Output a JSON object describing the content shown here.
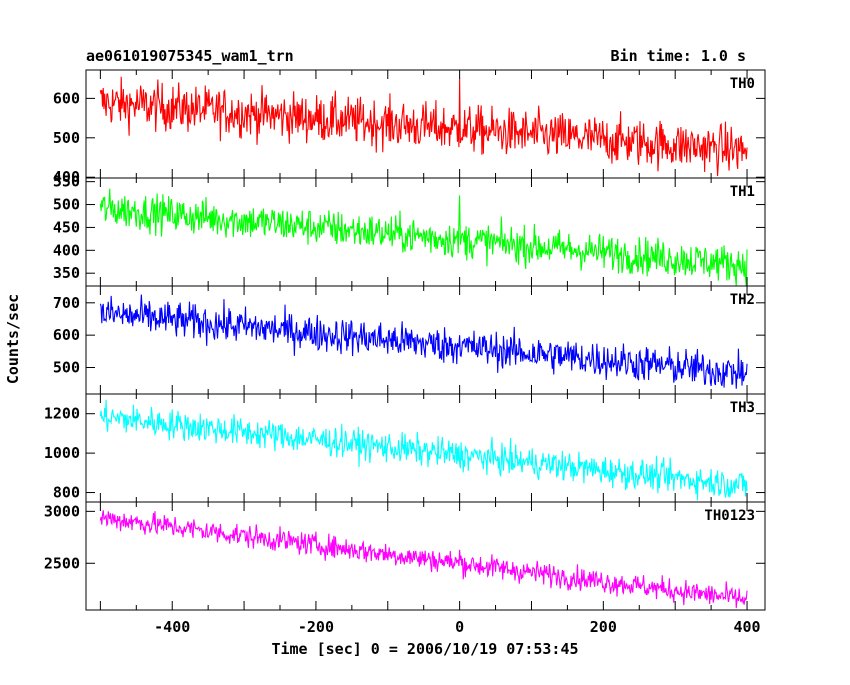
{
  "chart_data": {
    "type": "line",
    "title": "ae061019075345_wam1_trn",
    "subtitle": "Bin time: 1.0 s",
    "xlabel": "Time [sec] 0 = 2006/10/19 07:53:45",
    "ylabel": "Counts/sec",
    "xlim": [
      -520,
      425
    ],
    "x_ticks": [
      -400,
      -200,
      0,
      200,
      400
    ],
    "x": {
      "start": -500,
      "end": 400,
      "step": 1
    },
    "series": [
      {
        "name": "TH0",
        "color": "#ff0000",
        "ylim": [
          398,
          672
        ],
        "y_ticks": [
          400,
          500,
          600
        ],
        "trend_start": 590,
        "trend_end": 468,
        "noise": 30,
        "spike": {
          "x": 0,
          "y": 650
        }
      },
      {
        "name": "TH1",
        "color": "#00ff00",
        "ylim": [
          322,
          558
        ],
        "y_ticks": [
          350,
          400,
          450,
          500,
          550
        ],
        "trend_start": 492,
        "trend_end": 368,
        "noise": 20,
        "spike": {
          "x": 0,
          "y": 520
        }
      },
      {
        "name": "TH2",
        "color": "#0000ff",
        "ylim": [
          418,
          752
        ],
        "y_ticks": [
          500,
          600,
          700
        ],
        "trend_start": 668,
        "trend_end": 482,
        "noise": 28,
        "spike": {
          "x": 0,
          "y": 600
        }
      },
      {
        "name": "TH3",
        "color": "#00ffff",
        "ylim": [
          752,
          1300
        ],
        "y_ticks": [
          800,
          1000,
          1200
        ],
        "trend_start": 1185,
        "trend_end": 835,
        "noise": 38,
        "spike": null
      },
      {
        "name": "TH0123",
        "color": "#ff00ff",
        "ylim": [
          2050,
          3090
        ],
        "y_ticks": [
          2500,
          3000
        ],
        "trend_start": 2940,
        "trend_end": 2150,
        "noise": 55,
        "spike": {
          "x": 0,
          "y": 2630
        }
      }
    ]
  }
}
